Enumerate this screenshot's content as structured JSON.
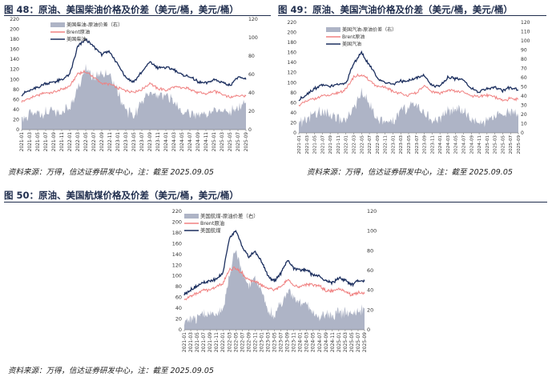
{
  "colors": {
    "diesel": "#1b2e5e",
    "brent": "#f08080",
    "spread": "#aeb4c6",
    "title": "#1f2d4d"
  },
  "figures": [
    {
      "title": "图 48：原油、美国柴油价格及价差（美元/桶，美元/桶）",
      "source": "资料来源：万得，信达证券研发中心，注：截至 2025.09.05"
    },
    {
      "title": "图 49：原油、美国汽油价格及价差（美元/桶，美元/桶）",
      "source": "资料来源：万得，信达证券研发中心，注：截至 2025.09.05"
    },
    {
      "title": "图 50：原油、美国航煤价格及价差（美元/桶，美元/桶）",
      "source": "资料来源：万得，信达证券研发中心，注：截至 2025.09.05"
    }
  ],
  "chart_data": [
    {
      "type": "line",
      "x": [
        "2021-01",
        "2021-03",
        "2021-05",
        "2021-07",
        "2021-09",
        "2021-11",
        "2022-01",
        "2022-03",
        "2022-05",
        "2022-07",
        "2022-09",
        "2022-11",
        "2023-01",
        "2023-03",
        "2023-05",
        "2023-07",
        "2023-09",
        "2023-11",
        "2024-01",
        "2024-03",
        "2024-05",
        "2024-07",
        "2024-09",
        "2024-11",
        "2025-01",
        "2025-03",
        "2025-05",
        "2025-07",
        "2025-09"
      ],
      "series": [
        {
          "name": "美国柴油-原油价差（右）",
          "kind": "area",
          "axis": "right",
          "values": [
            14,
            16,
            17,
            18,
            19,
            20,
            24,
            45,
            70,
            55,
            62,
            60,
            40,
            22,
            15,
            30,
            42,
            35,
            38,
            30,
            20,
            17,
            18,
            16,
            20,
            22,
            20,
            25,
            30
          ]
        },
        {
          "name": "Brent原油",
          "kind": "line",
          "axis": "left",
          "values": [
            55,
            63,
            68,
            74,
            74,
            80,
            86,
            112,
            115,
            105,
            92,
            90,
            83,
            78,
            75,
            80,
            93,
            82,
            79,
            85,
            83,
            82,
            73,
            72,
            76,
            72,
            64,
            69,
            67
          ]
        },
        {
          "name": "美国柴油",
          "kind": "line",
          "axis": "left",
          "values": [
            70,
            78,
            84,
            92,
            95,
            99,
            110,
            165,
            180,
            165,
            150,
            155,
            130,
            105,
            95,
            115,
            135,
            123,
            124,
            120,
            110,
            105,
            95,
            92,
            100,
            95,
            88,
            105,
            100
          ]
        }
      ],
      "yleft": {
        "min": 0,
        "max": 220,
        "ticks": [
          0,
          20,
          40,
          60,
          80,
          100,
          120,
          140,
          160,
          180,
          200,
          220
        ]
      },
      "yright": {
        "min": 0,
        "max": 120,
        "ticks": [
          0,
          20,
          40,
          60,
          80,
          100,
          120
        ]
      },
      "legend": "top-left",
      "grid": false
    },
    {
      "type": "line",
      "x": [
        "2021-01",
        "2021-03",
        "2021-05",
        "2021-07",
        "2021-09",
        "2021-11",
        "2022-01",
        "2022-03",
        "2022-05",
        "2022-07",
        "2022-09",
        "2022-11",
        "2023-01",
        "2023-03",
        "2023-05",
        "2023-07",
        "2023-09",
        "2023-11",
        "2024-01",
        "2024-03",
        "2024-05",
        "2024-07",
        "2024-09",
        "2024-11",
        "2025-01",
        "2025-03",
        "2025-05",
        "2025-07",
        "2025-09"
      ],
      "series": [
        {
          "name": "美国汽油-原油价差（右）",
          "kind": "area",
          "axis": "right",
          "values": [
            10,
            15,
            20,
            22,
            18,
            17,
            12,
            25,
            45,
            30,
            18,
            10,
            14,
            25,
            28,
            30,
            22,
            12,
            14,
            26,
            25,
            24,
            15,
            10,
            12,
            18,
            20,
            22,
            18
          ]
        },
        {
          "name": "Brent原油",
          "kind": "line",
          "axis": "left",
          "values": [
            55,
            63,
            68,
            74,
            74,
            80,
            86,
            112,
            115,
            105,
            92,
            90,
            83,
            78,
            75,
            80,
            93,
            82,
            79,
            85,
            83,
            82,
            73,
            72,
            76,
            72,
            64,
            69,
            67
          ]
        },
        {
          "name": "美国汽油",
          "kind": "line",
          "axis": "left",
          "values": [
            65,
            78,
            88,
            96,
            92,
            97,
            98,
            138,
            160,
            135,
            110,
            100,
            97,
            103,
            103,
            110,
            115,
            94,
            93,
            111,
            108,
            106,
            88,
            82,
            88,
            90,
            84,
            91,
            85
          ]
        }
      ],
      "yleft": {
        "min": 0,
        "max": 220,
        "ticks": [
          0,
          20,
          40,
          60,
          80,
          100,
          120,
          140,
          160,
          180,
          200,
          220
        ]
      },
      "yright": {
        "min": 0,
        "max": 120,
        "ticks": [
          0,
          10,
          20,
          30,
          40,
          50,
          60,
          70,
          80,
          90,
          100,
          110,
          120
        ]
      },
      "legend": "top-left",
      "grid": false
    },
    {
      "type": "line",
      "x": [
        "2021-01",
        "2021-03",
        "2021-05",
        "2021-07",
        "2021-09",
        "2021-11",
        "2022-01",
        "2022-03",
        "2022-05",
        "2022-07",
        "2022-09",
        "2022-11",
        "2023-01",
        "2023-03",
        "2023-05",
        "2023-07",
        "2023-09",
        "2023-11",
        "2024-01",
        "2024-03",
        "2024-05",
        "2024-07",
        "2024-09",
        "2024-11",
        "2025-01",
        "2025-03",
        "2025-05",
        "2025-07",
        "2025-09"
      ],
      "series": [
        {
          "name": "美国航煤-原油价差（右）",
          "kind": "area",
          "axis": "right",
          "values": [
            10,
            12,
            13,
            14,
            15,
            16,
            20,
            55,
            85,
            55,
            45,
            55,
            38,
            20,
            14,
            25,
            40,
            30,
            28,
            26,
            17,
            15,
            14,
            14,
            18,
            17,
            15,
            20,
            22
          ]
        },
        {
          "name": "Brent原油",
          "kind": "line",
          "axis": "left",
          "values": [
            55,
            63,
            68,
            74,
            74,
            80,
            86,
            112,
            115,
            105,
            92,
            90,
            83,
            78,
            75,
            80,
            93,
            82,
            79,
            85,
            83,
            82,
            73,
            72,
            76,
            72,
            64,
            69,
            67
          ]
        },
        {
          "name": "美国航煤",
          "kind": "line",
          "axis": "left",
          "values": [
            66,
            75,
            81,
            88,
            90,
            95,
            105,
            170,
            185,
            155,
            135,
            145,
            128,
            100,
            90,
            105,
            130,
            115,
            110,
            112,
            101,
            100,
            90,
            88,
            96,
            92,
            83,
            92,
            90
          ]
        }
      ],
      "yleft": {
        "min": 0,
        "max": 220,
        "ticks": [
          0,
          20,
          40,
          60,
          80,
          100,
          120,
          140,
          160,
          180,
          200,
          220
        ]
      },
      "yright": {
        "min": 0,
        "max": 120,
        "ticks": [
          0,
          20,
          40,
          60,
          80,
          100,
          120
        ]
      },
      "legend": "top-left",
      "grid": false
    }
  ]
}
